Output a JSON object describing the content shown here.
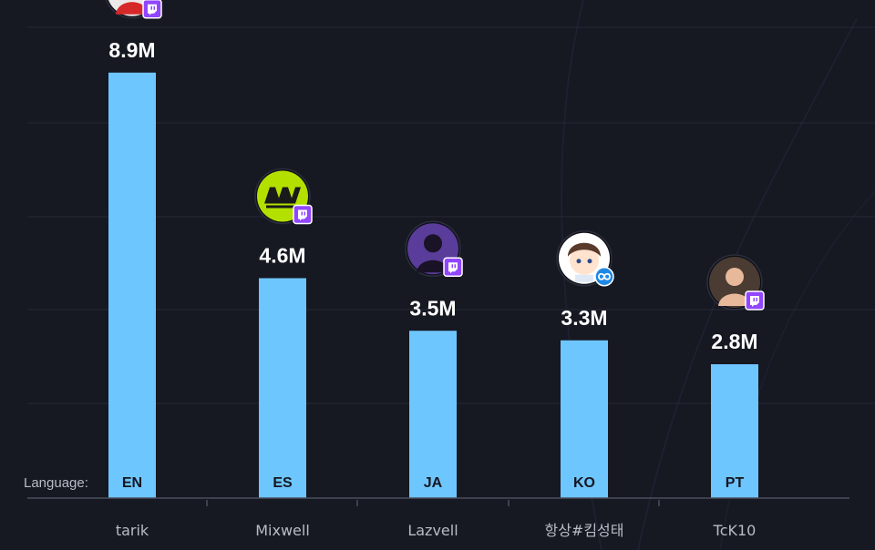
{
  "chart_data": {
    "type": "bar",
    "categories": [
      "tarik",
      "Mixwell",
      "Lazvell",
      "항상#킴성태",
      "TcK10"
    ],
    "values": [
      8.9,
      4.6,
      3.5,
      3.3,
      2.8
    ],
    "value_labels": [
      "8.9M",
      "4.6M",
      "3.5M",
      "3.3M",
      "2.8M"
    ],
    "languages": [
      "EN",
      "ES",
      "JA",
      "KO",
      "PT"
    ],
    "platforms": [
      "twitch",
      "twitch",
      "twitch",
      "kick",
      "twitch"
    ],
    "language_label": "Language:",
    "title": "",
    "xlabel": "",
    "ylabel": "",
    "ylim": [
      0,
      10
    ],
    "grid": true,
    "legend": "none"
  },
  "colors": {
    "background": "#161822",
    "bar": "#6ec6ff",
    "gridline": "#262a36",
    "axis_text": "#b9bcc7",
    "value_text": "#ffffff",
    "twitch": "#9146ff",
    "kick": "#1e88e5"
  },
  "icons": [
    "avatar-tarik",
    "avatar-mixwell",
    "avatar-lazvell",
    "avatar-kimsungtae",
    "avatar-tck10",
    "twitch-icon",
    "infinity-icon"
  ]
}
